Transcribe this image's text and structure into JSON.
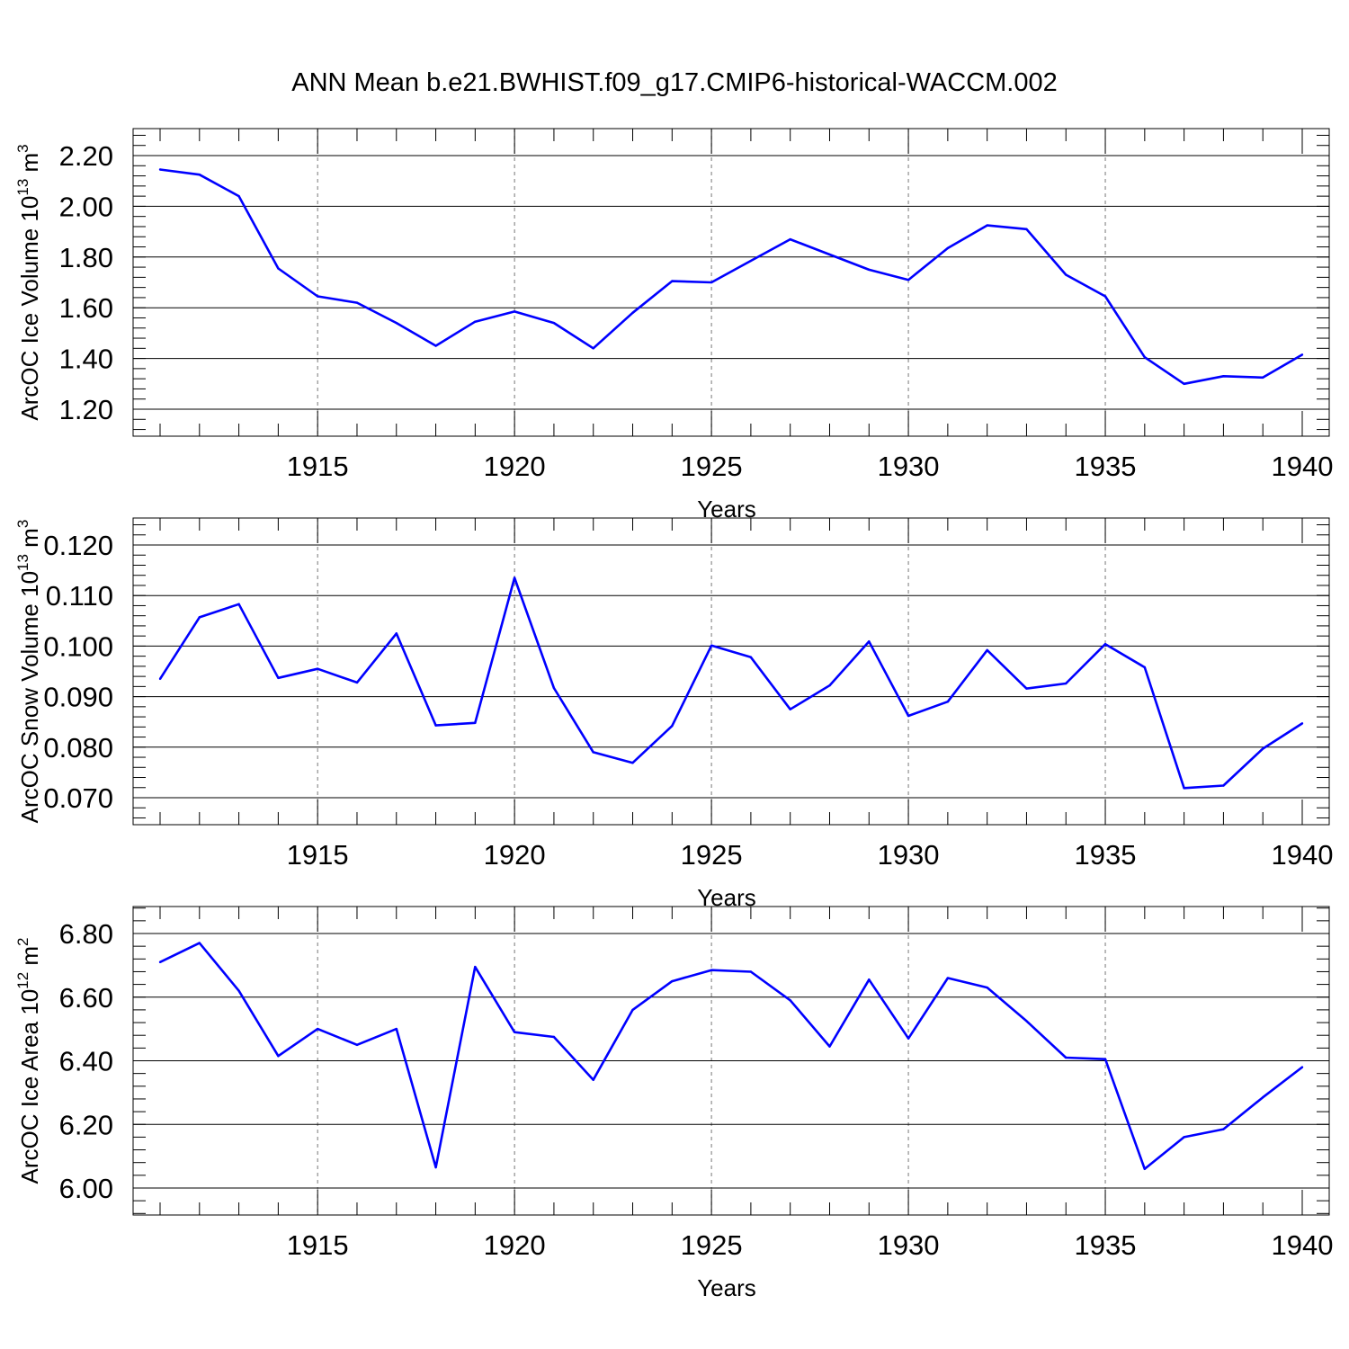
{
  "title": "ANN Mean b.e21.BWHIST.f09_g17.CMIP6-historical-WACCM.002",
  "colors": {
    "series": "#0000ff",
    "axis": "#000000",
    "grid": "#777777"
  },
  "chart_data": [
    {
      "type": "line",
      "ylabel": {
        "text": "ArcOC Ice Volume 10",
        "sup": "13",
        "unit": " m",
        "unit_sup": "3"
      },
      "xlabel": "Years",
      "xlim": [
        1911,
        1940
      ],
      "ylim": [
        1.2,
        2.2
      ],
      "xticks": [
        1915,
        1920,
        1925,
        1930,
        1935,
        1940
      ],
      "yticks": [
        "1.20",
        "1.40",
        "1.60",
        "1.80",
        "2.00",
        "2.20"
      ],
      "grid": "dashed vertical at major x ticks",
      "x": [
        1911,
        1912,
        1913,
        1914,
        1915,
        1916,
        1917,
        1918,
        1919,
        1920,
        1921,
        1922,
        1923,
        1924,
        1925,
        1926,
        1927,
        1928,
        1929,
        1930,
        1931,
        1932,
        1933,
        1934,
        1935,
        1936,
        1937,
        1938,
        1939,
        1940
      ],
      "values": [
        2.145,
        2.125,
        2.04,
        1.755,
        1.645,
        1.62,
        1.54,
        1.45,
        1.545,
        1.585,
        1.54,
        1.44,
        1.58,
        1.705,
        1.7,
        1.785,
        1.87,
        1.81,
        1.75,
        1.71,
        1.835,
        1.925,
        1.91,
        1.73,
        1.645,
        1.405,
        1.3,
        1.33,
        1.325,
        1.415
      ]
    },
    {
      "type": "line",
      "ylabel": {
        "text": "ArcOC Snow Volume 10",
        "sup": "13",
        "unit": " m",
        "unit_sup": "3"
      },
      "xlabel": "Years",
      "xlim": [
        1911,
        1940
      ],
      "ylim": [
        0.07,
        0.12
      ],
      "xticks": [
        1915,
        1920,
        1925,
        1930,
        1935,
        1940
      ],
      "yticks": [
        "0.070",
        "0.080",
        "0.090",
        "0.100",
        "0.110",
        "0.120"
      ],
      "grid": "dashed vertical at major x ticks",
      "x": [
        1911,
        1912,
        1913,
        1914,
        1915,
        1916,
        1917,
        1918,
        1919,
        1920,
        1921,
        1922,
        1923,
        1924,
        1925,
        1926,
        1927,
        1928,
        1929,
        1930,
        1931,
        1932,
        1933,
        1934,
        1935,
        1936,
        1937,
        1938,
        1939,
        1940
      ],
      "values": [
        0.0935,
        0.1057,
        0.1083,
        0.0937,
        0.0955,
        0.0928,
        0.1025,
        0.0843,
        0.0848,
        0.1135,
        0.0917,
        0.079,
        0.0769,
        0.0842,
        0.1001,
        0.0978,
        0.0875,
        0.0922,
        0.1009,
        0.0862,
        0.089,
        0.0992,
        0.0916,
        0.0926,
        0.1004,
        0.0958,
        0.0719,
        0.0724,
        0.0797,
        0.0847
      ]
    },
    {
      "type": "line",
      "ylabel": {
        "text": "ArcOC Ice Area 10",
        "sup": "12",
        "unit": " m",
        "unit_sup": "2"
      },
      "xlabel": "Years",
      "xlim": [
        1911,
        1940
      ],
      "ylim": [
        6.0,
        6.8
      ],
      "xticks": [
        1915,
        1920,
        1925,
        1930,
        1935,
        1940
      ],
      "yticks": [
        "6.00",
        "6.20",
        "6.40",
        "6.60",
        "6.80"
      ],
      "grid": "dashed vertical at major x ticks",
      "x": [
        1911,
        1912,
        1913,
        1914,
        1915,
        1916,
        1917,
        1918,
        1919,
        1920,
        1921,
        1922,
        1923,
        1924,
        1925,
        1926,
        1927,
        1928,
        1929,
        1930,
        1931,
        1932,
        1933,
        1934,
        1935,
        1936,
        1937,
        1938,
        1939,
        1940
      ],
      "values": [
        6.71,
        6.77,
        6.62,
        6.415,
        6.5,
        6.45,
        6.5,
        6.065,
        6.695,
        6.49,
        6.475,
        6.34,
        6.56,
        6.65,
        6.685,
        6.68,
        6.59,
        6.445,
        6.655,
        6.47,
        6.66,
        6.63,
        6.525,
        6.41,
        6.405,
        6.06,
        6.16,
        6.185,
        6.285,
        6.38
      ]
    }
  ]
}
